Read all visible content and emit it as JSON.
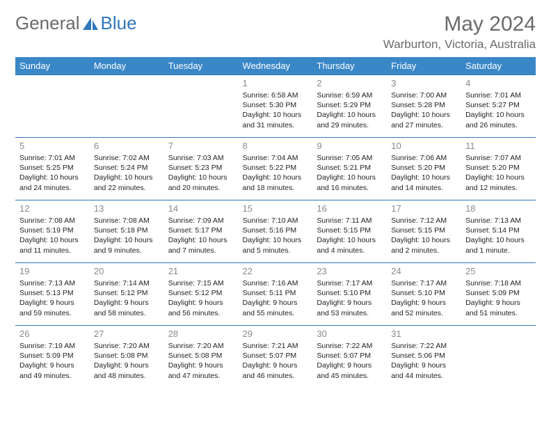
{
  "logo": {
    "text1": "General",
    "text2": "Blue"
  },
  "title": "May 2024",
  "location": "Warburton, Victoria, Australia",
  "style": {
    "header_bg": "#3a87c8",
    "header_text": "#ffffff",
    "border_color": "#2f77bb",
    "daynum_color": "#8a8a8a",
    "body_text_color": "#222222",
    "title_color": "#6a6a6a",
    "font_family": "Arial"
  },
  "days_of_week": [
    "Sunday",
    "Monday",
    "Tuesday",
    "Wednesday",
    "Thursday",
    "Friday",
    "Saturday"
  ],
  "weeks": [
    [
      null,
      null,
      null,
      {
        "n": "1",
        "sr": "6:58 AM",
        "ss": "5:30 PM",
        "dl": "10 hours and 31 minutes."
      },
      {
        "n": "2",
        "sr": "6:59 AM",
        "ss": "5:29 PM",
        "dl": "10 hours and 29 minutes."
      },
      {
        "n": "3",
        "sr": "7:00 AM",
        "ss": "5:28 PM",
        "dl": "10 hours and 27 minutes."
      },
      {
        "n": "4",
        "sr": "7:01 AM",
        "ss": "5:27 PM",
        "dl": "10 hours and 26 minutes."
      }
    ],
    [
      {
        "n": "5",
        "sr": "7:01 AM",
        "ss": "5:25 PM",
        "dl": "10 hours and 24 minutes."
      },
      {
        "n": "6",
        "sr": "7:02 AM",
        "ss": "5:24 PM",
        "dl": "10 hours and 22 minutes."
      },
      {
        "n": "7",
        "sr": "7:03 AM",
        "ss": "5:23 PM",
        "dl": "10 hours and 20 minutes."
      },
      {
        "n": "8",
        "sr": "7:04 AM",
        "ss": "5:22 PM",
        "dl": "10 hours and 18 minutes."
      },
      {
        "n": "9",
        "sr": "7:05 AM",
        "ss": "5:21 PM",
        "dl": "10 hours and 16 minutes."
      },
      {
        "n": "10",
        "sr": "7:06 AM",
        "ss": "5:20 PM",
        "dl": "10 hours and 14 minutes."
      },
      {
        "n": "11",
        "sr": "7:07 AM",
        "ss": "5:20 PM",
        "dl": "10 hours and 12 minutes."
      }
    ],
    [
      {
        "n": "12",
        "sr": "7:08 AM",
        "ss": "5:19 PM",
        "dl": "10 hours and 11 minutes."
      },
      {
        "n": "13",
        "sr": "7:08 AM",
        "ss": "5:18 PM",
        "dl": "10 hours and 9 minutes."
      },
      {
        "n": "14",
        "sr": "7:09 AM",
        "ss": "5:17 PM",
        "dl": "10 hours and 7 minutes."
      },
      {
        "n": "15",
        "sr": "7:10 AM",
        "ss": "5:16 PM",
        "dl": "10 hours and 5 minutes."
      },
      {
        "n": "16",
        "sr": "7:11 AM",
        "ss": "5:15 PM",
        "dl": "10 hours and 4 minutes."
      },
      {
        "n": "17",
        "sr": "7:12 AM",
        "ss": "5:15 PM",
        "dl": "10 hours and 2 minutes."
      },
      {
        "n": "18",
        "sr": "7:13 AM",
        "ss": "5:14 PM",
        "dl": "10 hours and 1 minute."
      }
    ],
    [
      {
        "n": "19",
        "sr": "7:13 AM",
        "ss": "5:13 PM",
        "dl": "9 hours and 59 minutes."
      },
      {
        "n": "20",
        "sr": "7:14 AM",
        "ss": "5:12 PM",
        "dl": "9 hours and 58 minutes."
      },
      {
        "n": "21",
        "sr": "7:15 AM",
        "ss": "5:12 PM",
        "dl": "9 hours and 56 minutes."
      },
      {
        "n": "22",
        "sr": "7:16 AM",
        "ss": "5:11 PM",
        "dl": "9 hours and 55 minutes."
      },
      {
        "n": "23",
        "sr": "7:17 AM",
        "ss": "5:10 PM",
        "dl": "9 hours and 53 minutes."
      },
      {
        "n": "24",
        "sr": "7:17 AM",
        "ss": "5:10 PM",
        "dl": "9 hours and 52 minutes."
      },
      {
        "n": "25",
        "sr": "7:18 AM",
        "ss": "5:09 PM",
        "dl": "9 hours and 51 minutes."
      }
    ],
    [
      {
        "n": "26",
        "sr": "7:19 AM",
        "ss": "5:09 PM",
        "dl": "9 hours and 49 minutes."
      },
      {
        "n": "27",
        "sr": "7:20 AM",
        "ss": "5:08 PM",
        "dl": "9 hours and 48 minutes."
      },
      {
        "n": "28",
        "sr": "7:20 AM",
        "ss": "5:08 PM",
        "dl": "9 hours and 47 minutes."
      },
      {
        "n": "29",
        "sr": "7:21 AM",
        "ss": "5:07 PM",
        "dl": "9 hours and 46 minutes."
      },
      {
        "n": "30",
        "sr": "7:22 AM",
        "ss": "5:07 PM",
        "dl": "9 hours and 45 minutes."
      },
      {
        "n": "31",
        "sr": "7:22 AM",
        "ss": "5:06 PM",
        "dl": "9 hours and 44 minutes."
      },
      null
    ]
  ],
  "labels": {
    "sunrise": "Sunrise:",
    "sunset": "Sunset:",
    "daylight": "Daylight:"
  }
}
